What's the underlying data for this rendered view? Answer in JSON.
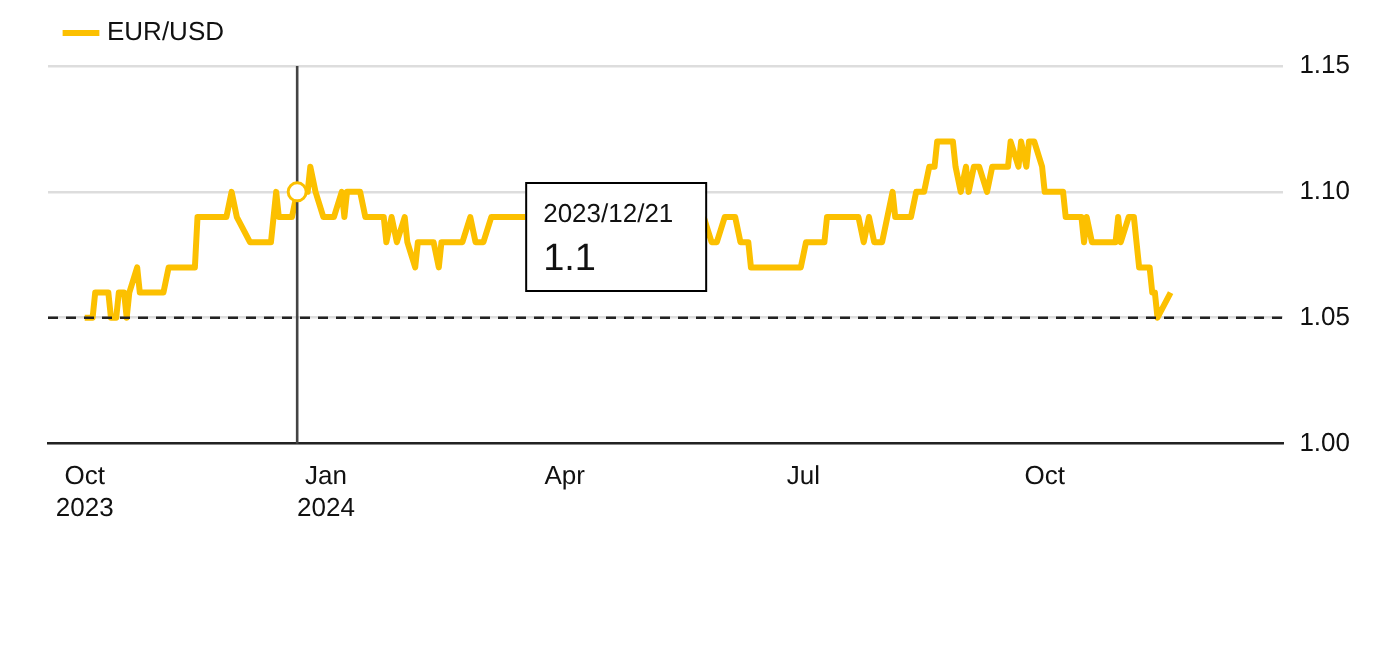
{
  "chart_data": {
    "type": "line",
    "x": [
      "2023-10-01",
      "2023-10-04",
      "2023-10-05",
      "2023-10-10",
      "2023-10-11",
      "2023-10-13",
      "2023-10-14",
      "2023-10-16",
      "2023-10-17",
      "2023-10-18",
      "2023-10-21",
      "2023-10-22",
      "2023-10-31",
      "2023-11-02",
      "2023-11-12",
      "2023-11-13",
      "2023-11-24",
      "2023-11-26",
      "2023-11-28",
      "2023-12-03",
      "2023-12-11",
      "2023-12-13",
      "2023-12-14",
      "2023-12-19",
      "2023-12-21",
      "2023-12-25",
      "2023-12-26",
      "2023-12-28",
      "2023-12-31",
      "2024-01-04",
      "2024-01-07",
      "2024-01-08",
      "2024-01-09",
      "2024-01-14",
      "2024-01-16",
      "2024-01-23",
      "2024-01-24",
      "2024-01-26",
      "2024-01-28",
      "2024-01-31",
      "2024-02-01",
      "2024-02-04",
      "2024-02-05",
      "2024-02-11",
      "2024-02-13",
      "2024-02-14",
      "2024-02-22",
      "2024-02-25",
      "2024-02-27",
      "2024-03-01",
      "2024-03-04",
      "2024-03-17",
      "2024-04-20",
      "2024-05-24",
      "2024-05-27",
      "2024-05-29",
      "2024-06-01",
      "2024-06-05",
      "2024-06-07",
      "2024-06-10",
      "2024-06-11",
      "2024-06-30",
      "2024-07-02",
      "2024-07-09",
      "2024-07-10",
      "2024-07-22",
      "2024-07-24",
      "2024-07-26",
      "2024-07-28",
      "2024-07-31",
      "2024-08-02",
      "2024-08-04",
      "2024-08-05",
      "2024-08-11",
      "2024-08-13",
      "2024-08-16",
      "2024-08-18",
      "2024-08-20",
      "2024-08-21",
      "2024-08-27",
      "2024-08-28",
      "2024-08-30",
      "2024-09-01",
      "2024-09-02",
      "2024-09-04",
      "2024-09-06",
      "2024-09-09",
      "2024-09-11",
      "2024-09-17",
      "2024-09-18",
      "2024-09-21",
      "2024-09-22",
      "2024-09-24",
      "2024-09-25",
      "2024-09-27",
      "2024-09-30",
      "2024-10-01",
      "2024-10-08",
      "2024-10-09",
      "2024-10-15",
      "2024-10-16",
      "2024-10-17",
      "2024-10-19",
      "2024-10-28",
      "2024-10-29",
      "2024-10-30",
      "2024-11-02",
      "2024-11-04",
      "2024-11-05",
      "2024-11-06",
      "2024-11-10",
      "2024-11-11",
      "2024-11-12",
      "2024-11-13",
      "2024-11-18"
    ],
    "series": [
      {
        "name": "EUR/USD",
        "color": "#fcc000",
        "values": [
          1.05,
          1.05,
          1.06,
          1.06,
          1.05,
          1.05,
          1.06,
          1.06,
          1.05,
          1.06,
          1.07,
          1.06,
          1.06,
          1.07,
          1.07,
          1.09,
          1.09,
          1.1,
          1.09,
          1.08,
          1.08,
          1.1,
          1.09,
          1.09,
          1.1,
          1.1,
          1.11,
          1.1,
          1.09,
          1.09,
          1.1,
          1.09,
          1.1,
          1.1,
          1.09,
          1.09,
          1.08,
          1.09,
          1.08,
          1.09,
          1.08,
          1.07,
          1.08,
          1.08,
          1.07,
          1.08,
          1.08,
          1.09,
          1.08,
          1.08,
          1.09,
          1.09,
          null,
          1.09,
          1.08,
          1.08,
          1.09,
          1.09,
          1.08,
          1.08,
          1.07,
          1.07,
          1.08,
          1.08,
          1.09,
          1.09,
          1.08,
          1.09,
          1.08,
          1.08,
          1.09,
          1.1,
          1.09,
          1.09,
          1.1,
          1.1,
          1.11,
          1.11,
          1.12,
          1.12,
          1.11,
          1.1,
          1.11,
          1.1,
          1.11,
          1.11,
          1.1,
          1.11,
          1.11,
          1.12,
          1.11,
          1.12,
          1.11,
          1.12,
          1.12,
          1.11,
          1.1,
          1.1,
          1.09,
          1.09,
          1.08,
          1.09,
          1.08,
          1.08,
          1.09,
          1.08,
          1.09,
          1.09,
          1.08,
          1.07,
          1.07,
          1.06,
          1.06,
          1.05,
          1.06
        ]
      }
    ],
    "xlim": [
      "2023-09-17",
      "2024-12-31"
    ],
    "xticks": [
      {
        "value": "2023-10-01",
        "label": "Oct 2023"
      },
      {
        "value": "2024-01-01",
        "label": "Jan 2024"
      },
      {
        "value": "2024-04-01",
        "label": "Apr"
      },
      {
        "value": "2024-07-01",
        "label": "Jul"
      },
      {
        "value": "2024-10-01",
        "label": "Oct"
      }
    ],
    "ylim": [
      1.0,
      1.15
    ],
    "yticks": [
      {
        "value": 1.0,
        "label": "1.00"
      },
      {
        "value": 1.05,
        "label": "1.05"
      },
      {
        "value": 1.1,
        "label": "1.10"
      },
      {
        "value": 1.15,
        "label": "1.15"
      }
    ],
    "grid": "y",
    "legend": "top left",
    "ref_lines": [
      {
        "axis": "y",
        "value": 1.05,
        "color": "#222222",
        "line_style": "dashed"
      },
      {
        "axis": "x",
        "value": "2023-12-21",
        "color": "#444444",
        "line_style": "solid"
      }
    ],
    "annotations": [
      "2023/12/21",
      "1.1"
    ]
  }
}
